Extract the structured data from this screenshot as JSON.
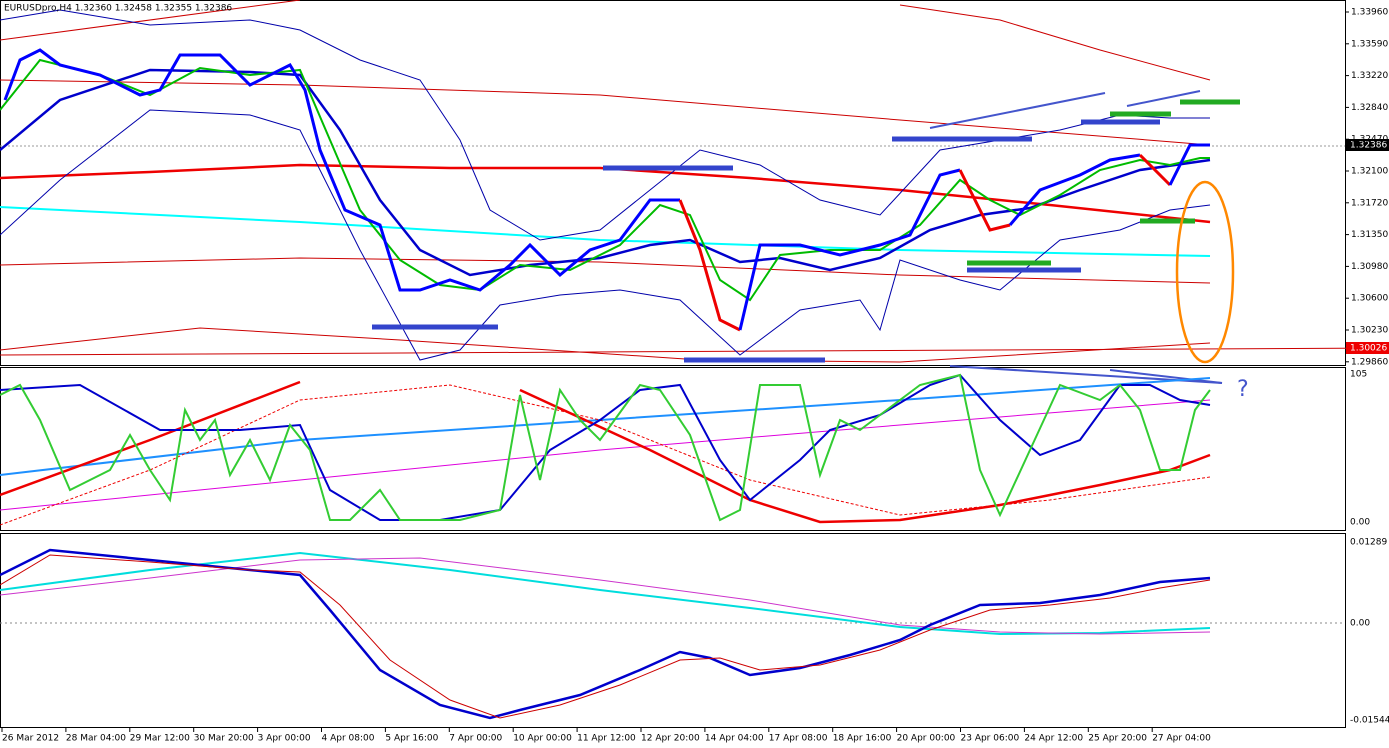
{
  "header": "EURUSDpro,H4  1.32360 1.32458 1.32355 1.32386",
  "price_axis": [
    "1.33960",
    "1.33590",
    "1.33220",
    "1.32840",
    "1.32470",
    "1.32100",
    "1.31720",
    "1.31350",
    "1.30980",
    "1.30600",
    "1.30230",
    "1.29860"
  ],
  "current_price": "1.32386",
  "line_price": "1.30026",
  "oscillator_axis": [
    "105",
    "0.00"
  ],
  "macd_axis": [
    "0.01289",
    "0.00",
    "-0.01544"
  ],
  "annotation": "?",
  "time_axis": [
    "26 Mar 2012",
    "28 Mar 04:00",
    "29 Mar 12:00",
    "30 Mar 20:00",
    "3 Apr 00:00",
    "4 Apr 08:00",
    "5 Apr 16:00",
    "7 Apr 00:00",
    "10 Apr 00:00",
    "11 Apr 12:00",
    "12 Apr 20:00",
    "14 Apr 04:00",
    "17 Apr 08:00",
    "18 Apr 16:00",
    "20 Apr 00:00",
    "23 Apr 06:00",
    "24 Apr 12:00",
    "25 Apr 20:00",
    "27 Apr 04:00"
  ]
}
